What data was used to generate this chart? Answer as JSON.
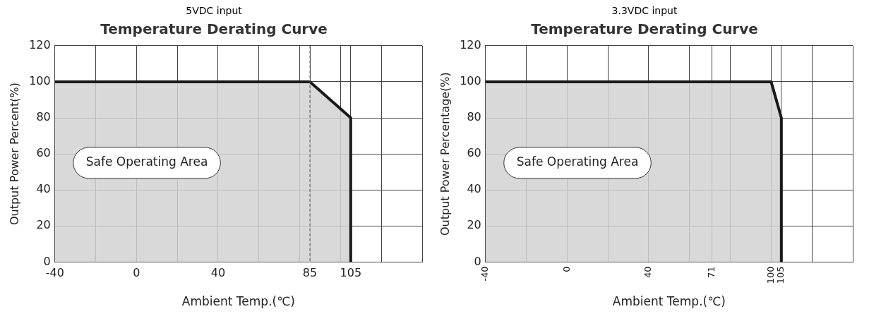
{
  "chart_data": [
    {
      "type": "area",
      "subtitle": "5VDC input",
      "title": "Temperature Derating Curve",
      "xlabel": "Ambient Temp.(℃)",
      "ylabel": "Output Power Percent(%)",
      "x": [
        -40,
        85,
        105,
        105
      ],
      "series": [
        {
          "color": "#1a1a1a",
          "values": [
            100,
            100,
            80,
            0
          ]
        }
      ],
      "xlim": [
        -40,
        140
      ],
      "ylim": [
        0,
        120
      ],
      "xticks": [
        -40,
        {
          "value": -20,
          "label": null
        },
        0,
        {
          "value": 20,
          "label": null
        },
        40,
        {
          "value": 60,
          "label": null
        },
        {
          "value": 80,
          "label": null
        },
        85,
        {
          "value": 100,
          "label": null
        },
        105,
        {
          "value": 120,
          "label": null
        },
        {
          "value": 140,
          "label": null
        }
      ],
      "yticks": [
        0,
        20,
        40,
        60,
        80,
        100,
        120
      ],
      "grid": true,
      "ref_lines": [
        {
          "axis": "x",
          "value": 85,
          "line_style": "dashed",
          "color": "#555555"
        }
      ],
      "annotations": [
        "Safe Operating Area"
      ]
    },
    {
      "type": "area",
      "subtitle": "3.3VDC input",
      "title": "Temperature Derating Curve",
      "xlabel": "Ambient Temp.(℃)",
      "ylabel": "Output Power Percentage(%)",
      "x": [
        -40,
        100,
        105,
        105
      ],
      "series": [
        {
          "color": "#1a1a1a",
          "values": [
            100,
            100,
            80,
            0
          ]
        }
      ],
      "xlim": [
        -40,
        140
      ],
      "ylim": [
        0,
        120
      ],
      "xticks": [
        -40,
        {
          "value": -20,
          "label": null
        },
        0,
        {
          "value": 20,
          "label": null
        },
        40,
        {
          "value": 60,
          "label": null
        },
        71,
        {
          "value": 80,
          "label": null
        },
        100,
        105,
        {
          "value": 120,
          "label": null
        },
        {
          "value": 140,
          "label": null
        }
      ],
      "yticks": [
        0,
        20,
        40,
        60,
        80,
        100,
        120
      ],
      "grid": true,
      "annotations": [
        "Safe Operating Area"
      ]
    }
  ]
}
